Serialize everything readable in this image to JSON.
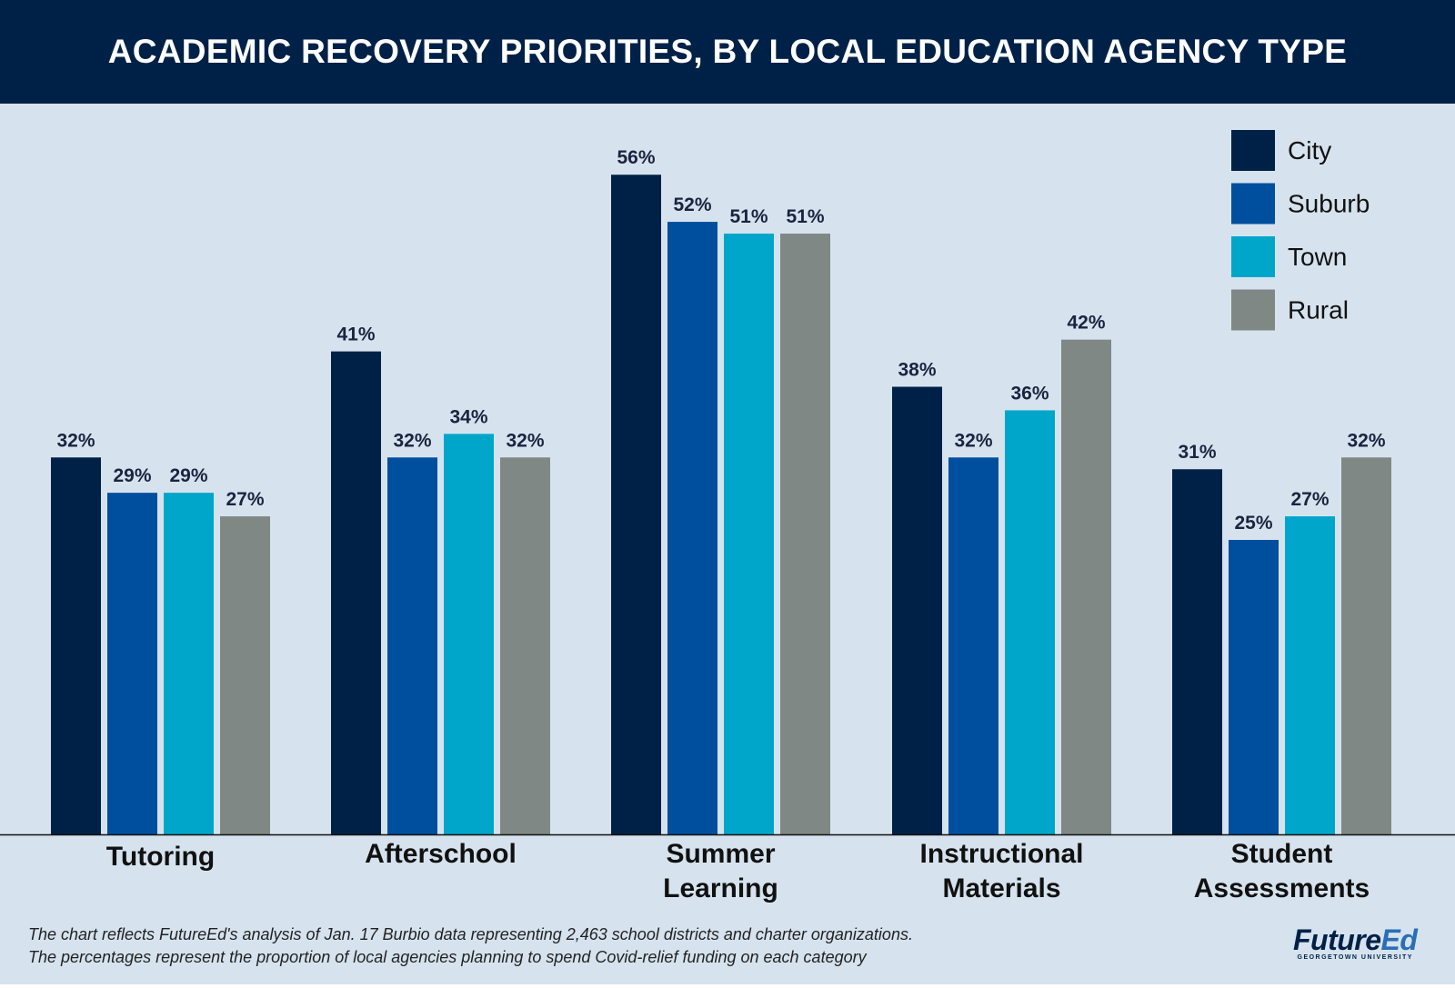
{
  "chart_data": {
    "type": "bar",
    "title": "ACADEMIC RECOVERY PRIORITIES, BY LOCAL EDUCATION AGENCY TYPE",
    "categories": [
      [
        "Tutoring"
      ],
      [
        "Afterschool"
      ],
      [
        "Summer",
        "Learning"
      ],
      [
        "Instructional",
        "Materials"
      ],
      [
        "Student",
        "Assessments"
      ]
    ],
    "series": [
      {
        "name": "City",
        "color": "#002147",
        "values": [
          32,
          41,
          56,
          38,
          31
        ]
      },
      {
        "name": "Suburb",
        "color": "#004f9f",
        "values": [
          29,
          32,
          52,
          32,
          25
        ]
      },
      {
        "name": "Town",
        "color": "#00a6c9",
        "values": [
          29,
          34,
          51,
          36,
          27
        ]
      },
      {
        "name": "Rural",
        "color": "#7f8884",
        "values": [
          27,
          32,
          51,
          42,
          32
        ]
      }
    ],
    "value_format": "{v}%",
    "ylim": [
      0,
      60
    ],
    "grid": false,
    "legend_position": "top-right",
    "xlabel": "",
    "ylabel": ""
  },
  "footer": {
    "line1": "The chart reflects FutureEd's analysis of Jan. 17 Burbio data representing 2,463 school districts and charter organizations.",
    "line2": "The percentages represent the proportion of local agencies planning to spend Covid-relief funding on each category"
  },
  "logo": {
    "name_a": "Future",
    "name_b": "Ed",
    "sub": "GEORGETOWN UNIVERSITY"
  }
}
